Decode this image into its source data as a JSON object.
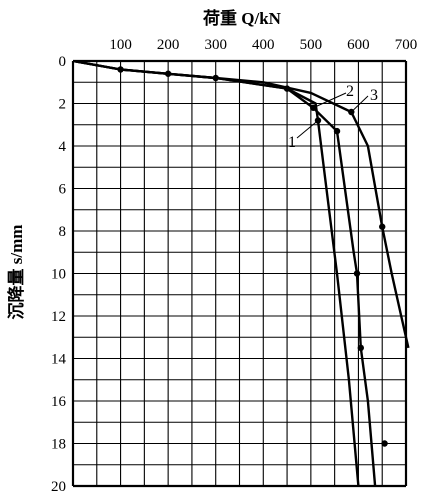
{
  "chart_data": {
    "type": "line",
    "title": "",
    "xlabel": "荷重 Q/kN",
    "ylabel": "沉降量 s/mm",
    "x_axis_position": "top",
    "y_axis_inverted": true,
    "xlim": [
      0,
      700
    ],
    "ylim": [
      0,
      20
    ],
    "x_ticks": [
      100,
      200,
      300,
      400,
      500,
      600,
      700
    ],
    "y_ticks": [
      0,
      2,
      4,
      6,
      8,
      10,
      12,
      14,
      16,
      18,
      20
    ],
    "grid": true,
    "series": [
      {
        "name": "1",
        "points": [
          [
            0,
            0
          ],
          [
            100,
            0.4
          ],
          [
            200,
            0.6
          ],
          [
            300,
            0.8
          ],
          [
            450,
            1.3
          ],
          [
            510,
            2.0
          ],
          [
            515,
            2.8
          ],
          [
            530,
            5.5
          ],
          [
            555,
            10.0
          ],
          [
            580,
            15.0
          ],
          [
            600,
            20.0
          ]
        ]
      },
      {
        "name": "2",
        "points": [
          [
            0,
            0
          ],
          [
            100,
            0.4
          ],
          [
            200,
            0.6
          ],
          [
            300,
            0.8
          ],
          [
            450,
            1.3
          ],
          [
            505,
            2.2
          ],
          [
            555,
            3.3
          ],
          [
            590,
            9.0
          ],
          [
            597,
            10.0
          ],
          [
            605,
            13.5
          ],
          [
            620,
            16.0
          ],
          [
            635,
            20.0
          ]
        ]
      },
      {
        "name": "3",
        "points": [
          [
            0,
            0
          ],
          [
            100,
            0.4
          ],
          [
            200,
            0.6
          ],
          [
            300,
            0.8
          ],
          [
            400,
            1.0
          ],
          [
            500,
            1.5
          ],
          [
            585,
            2.4
          ],
          [
            620,
            4.0
          ],
          [
            650,
            7.8
          ],
          [
            670,
            10.0
          ],
          [
            690,
            12.0
          ],
          [
            705,
            13.5
          ]
        ]
      }
    ],
    "markers": [
      [
        100,
        0.4
      ],
      [
        200,
        0.6
      ],
      [
        300,
        0.8
      ],
      [
        450,
        1.3
      ],
      [
        505,
        2.2
      ],
      [
        515,
        2.8
      ],
      [
        555,
        3.3
      ],
      [
        585,
        2.4
      ],
      [
        650,
        7.8
      ],
      [
        597,
        10.0
      ],
      [
        605,
        13.5
      ],
      [
        655,
        18.0
      ]
    ],
    "curve_labels": [
      "1",
      "2",
      "3"
    ]
  }
}
